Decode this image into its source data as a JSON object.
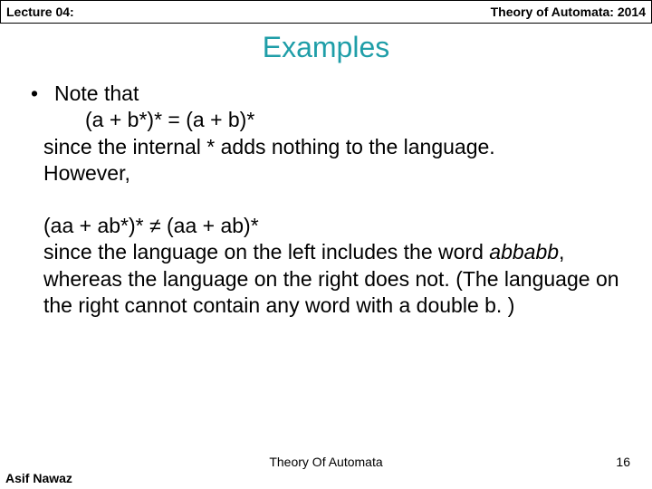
{
  "header": {
    "left": "Lecture 04:",
    "right": "Theory of Automata: 2014"
  },
  "title": "Examples",
  "body": {
    "bullet1": "Note that",
    "eq1": "(a + b*)* = (a + b)*",
    "line1a": "since the internal * adds nothing to the language.",
    "line1b": "However,",
    "eq2": "(aa + ab*)* ≠ (aa + ab)*",
    "line2a": "since the language on the left includes the word ",
    "word_it": "abbabb",
    "line2b": ", whereas the language on the right does not. (The language on the right cannot contain any word with a double b. )"
  },
  "footer": {
    "center": "Theory Of Automata",
    "left": "Asif Nawaz",
    "page": "16"
  },
  "colors": {
    "title": "#1f9ea8",
    "text": "#000000",
    "bg": "#ffffff"
  }
}
